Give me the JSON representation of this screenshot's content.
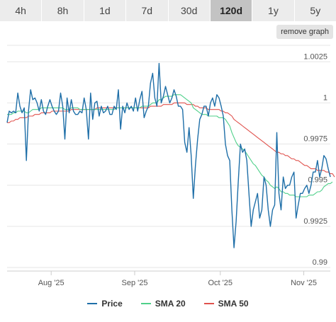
{
  "tabs": [
    {
      "label": "4h"
    },
    {
      "label": "8h"
    },
    {
      "label": "1d"
    },
    {
      "label": "7d"
    },
    {
      "label": "30d"
    },
    {
      "label": "120d"
    },
    {
      "label": "1y"
    },
    {
      "label": "5y"
    }
  ],
  "active_tab": "120d",
  "toolbar": {
    "remove_graph_label": "remove graph"
  },
  "colors": {
    "price": "#1f6fa8",
    "sma20": "#4fd08a",
    "sma50": "#e0524d",
    "grid": "#e6e6e6",
    "axis_text": "#555555"
  },
  "chart_data": {
    "type": "line",
    "x_ticks": [
      "Aug '25",
      "Sep '25",
      "Oct '25",
      "Nov '25"
    ],
    "y_ticks": [
      "0.99",
      "0.9925",
      "0.995",
      "0.9975",
      "1",
      "1.0025"
    ],
    "ylim": [
      0.99,
      1.0035
    ],
    "grid": true,
    "legend_position": "bottom",
    "series": [
      {
        "name": "Price",
        "values": [
          0.9988,
          0.9995,
          0.9994,
          0.9995,
          0.9994,
          1.0006,
          0.9998,
          0.9994,
          0.9997,
          0.9965,
          0.9995,
          1.0008,
          1.0002,
          1.0003,
          1.0,
          0.9995,
          1.0002,
          0.9995,
          0.9993,
          0.9998,
          1.0002,
          0.9998,
          0.9995,
          0.9993,
          0.9995,
          1.0006,
          0.9998,
          0.9978,
          1.0003,
          0.9994,
          1.0002,
          0.9995,
          0.9993,
          0.9993,
          0.9995,
          0.9994,
          1.0003,
          0.9996,
          0.9978,
          1.0006,
          0.999,
          1.0,
          1.0001,
          0.9992,
          0.9998,
          0.9994,
          0.9995,
          0.9998,
          0.9993,
          0.9993,
          0.9998,
          0.9996,
          1.0008,
          0.9984,
          0.9998,
          0.9994,
          1.0,
          0.9996,
          0.9998,
          0.9995,
          1.0003,
          0.9995,
          1.0002,
          1.0007,
          0.9991,
          0.9995,
          0.9998,
          1.0012,
          1.0018,
          1.0003,
          0.9998,
          1.0024,
          1.0,
          1.0004,
          1.001,
          1.0005,
          1.0,
          1.0003,
          1.0008,
          1.0004,
          0.9998,
          0.9998,
          0.9996,
          0.9976,
          0.997,
          0.9985,
          0.9968,
          0.9942,
          0.9962,
          0.9978,
          0.999,
          0.9993,
          0.9998,
          0.9998,
          0.9992,
          1.0,
          1.0003,
          0.9998,
          1.0005,
          1.0003,
          0.9998,
          0.9992,
          0.9975,
          0.9968,
          0.9965,
          0.9935,
          0.9912,
          0.9928,
          0.9952,
          0.9975,
          0.997,
          0.9972,
          0.9965,
          0.9945,
          0.9925,
          0.9935,
          0.994,
          0.9945,
          0.993,
          0.9935,
          0.9955,
          0.995,
          0.9935,
          0.9925,
          0.9935,
          0.9938,
          0.9982,
          0.9945,
          0.9935,
          0.9955,
          0.9948,
          0.995,
          0.995,
          0.9955,
          0.9958,
          0.993,
          0.9938,
          0.9945,
          0.9945,
          0.9948,
          0.995,
          0.9945,
          0.995,
          0.9958,
          0.9958,
          0.9965,
          0.9955,
          0.996,
          0.9968,
          0.9966,
          0.996,
          0.9955
        ]
      },
      {
        "name": "SMA 20",
        "values": [
          0.9993,
          0.9993,
          0.9993,
          0.9994,
          0.9994,
          0.9995,
          0.9995,
          0.9995,
          0.9995,
          0.9994,
          0.9994,
          0.9995,
          0.9996,
          0.9996,
          0.9996,
          0.9996,
          0.9997,
          0.9997,
          0.9997,
          0.9997,
          0.9997,
          0.9997,
          0.9997,
          0.9997,
          0.9997,
          0.9997,
          0.9997,
          0.9996,
          0.9996,
          0.9996,
          0.9997,
          0.9997,
          0.9997,
          0.9997,
          0.9996,
          0.9996,
          0.9996,
          0.9996,
          0.9996,
          0.9996,
          0.9996,
          0.9996,
          0.9996,
          0.9996,
          0.9996,
          0.9996,
          0.9996,
          0.9996,
          0.9996,
          0.9996,
          0.9996,
          0.9997,
          0.9997,
          0.9997,
          0.9997,
          0.9997,
          0.9997,
          0.9997,
          0.9997,
          0.9997,
          0.9997,
          0.9997,
          0.9997,
          0.9998,
          0.9998,
          0.9998,
          0.9998,
          0.9999,
          1.0,
          1.0,
          1.0,
          1.0002,
          1.0002,
          1.0003,
          1.0004,
          1.0004,
          1.0004,
          1.0004,
          1.0005,
          1.0005,
          1.0005,
          1.0005,
          1.0004,
          1.0003,
          1.0002,
          1.0001,
          1.0,
          0.9997,
          0.9996,
          0.9995,
          0.9994,
          0.9993,
          0.9993,
          0.9993,
          0.9992,
          0.9992,
          0.9992,
          0.9992,
          0.9992,
          0.9991,
          0.9991,
          0.9991,
          0.999,
          0.9988,
          0.9986,
          0.9982,
          0.9979,
          0.9976,
          0.9974,
          0.9973,
          0.9972,
          0.9971,
          0.9969,
          0.9967,
          0.9965,
          0.9963,
          0.9962,
          0.996,
          0.9958,
          0.9956,
          0.9955,
          0.9953,
          0.9952,
          0.995,
          0.9949,
          0.9948,
          0.9949,
          0.9948,
          0.9946,
          0.9946,
          0.9945,
          0.9945,
          0.9944,
          0.9944,
          0.9944,
          0.9943,
          0.9943,
          0.9943,
          0.9943,
          0.9943,
          0.9943,
          0.9944,
          0.9944,
          0.9944,
          0.9945,
          0.9946,
          0.9946,
          0.9947,
          0.9949,
          0.995,
          0.9951,
          0.9951,
          0.9952
        ]
      },
      {
        "name": "SMA 50",
        "values": [
          0.9988,
          0.9988,
          0.9989,
          0.9989,
          0.999,
          0.999,
          0.9991,
          0.9991,
          0.9991,
          0.9991,
          0.9992,
          0.9992,
          0.9992,
          0.9993,
          0.9993,
          0.9993,
          0.9994,
          0.9994,
          0.9994,
          0.9994,
          0.9994,
          0.9995,
          0.9995,
          0.9995,
          0.9995,
          0.9995,
          0.9995,
          0.9995,
          0.9995,
          0.9995,
          0.9996,
          0.9996,
          0.9996,
          0.9996,
          0.9996,
          0.9996,
          0.9996,
          0.9996,
          0.9996,
          0.9996,
          0.9996,
          0.9996,
          0.9997,
          0.9997,
          0.9997,
          0.9997,
          0.9997,
          0.9997,
          0.9997,
          0.9997,
          0.9997,
          0.9997,
          0.9997,
          0.9997,
          0.9997,
          0.9997,
          0.9997,
          0.9997,
          0.9997,
          0.9997,
          0.9997,
          0.9997,
          0.9997,
          0.9997,
          0.9997,
          0.9997,
          0.9997,
          0.9998,
          0.9998,
          0.9998,
          0.9998,
          0.9998,
          0.9998,
          0.9999,
          0.9999,
          0.9999,
          0.9999,
          0.9999,
          1.0,
          1.0,
          1.0,
          1.0,
          1.0,
          1.0,
          0.9999,
          0.9999,
          0.9999,
          0.9999,
          0.9998,
          0.9998,
          0.9997,
          0.9997,
          0.9997,
          0.9997,
          0.9996,
          0.9996,
          0.9996,
          0.9996,
          0.9996,
          0.9996,
          0.9995,
          0.9995,
          0.9994,
          0.9994,
          0.9993,
          0.9992,
          0.999,
          0.9989,
          0.9988,
          0.9987,
          0.9986,
          0.9985,
          0.9984,
          0.9983,
          0.9982,
          0.9981,
          0.998,
          0.9979,
          0.9978,
          0.9977,
          0.9976,
          0.9975,
          0.9974,
          0.9973,
          0.9972,
          0.9971,
          0.997,
          0.997,
          0.9969,
          0.9969,
          0.9968,
          0.9968,
          0.9967,
          0.9966,
          0.9966,
          0.9965,
          0.9965,
          0.9964,
          0.9963,
          0.9962,
          0.9962,
          0.9961,
          0.996,
          0.996,
          0.996,
          0.9959,
          0.9959,
          0.9959,
          0.9959,
          0.9958,
          0.9958,
          0.9957,
          0.9957,
          0.9955
        ]
      }
    ]
  }
}
